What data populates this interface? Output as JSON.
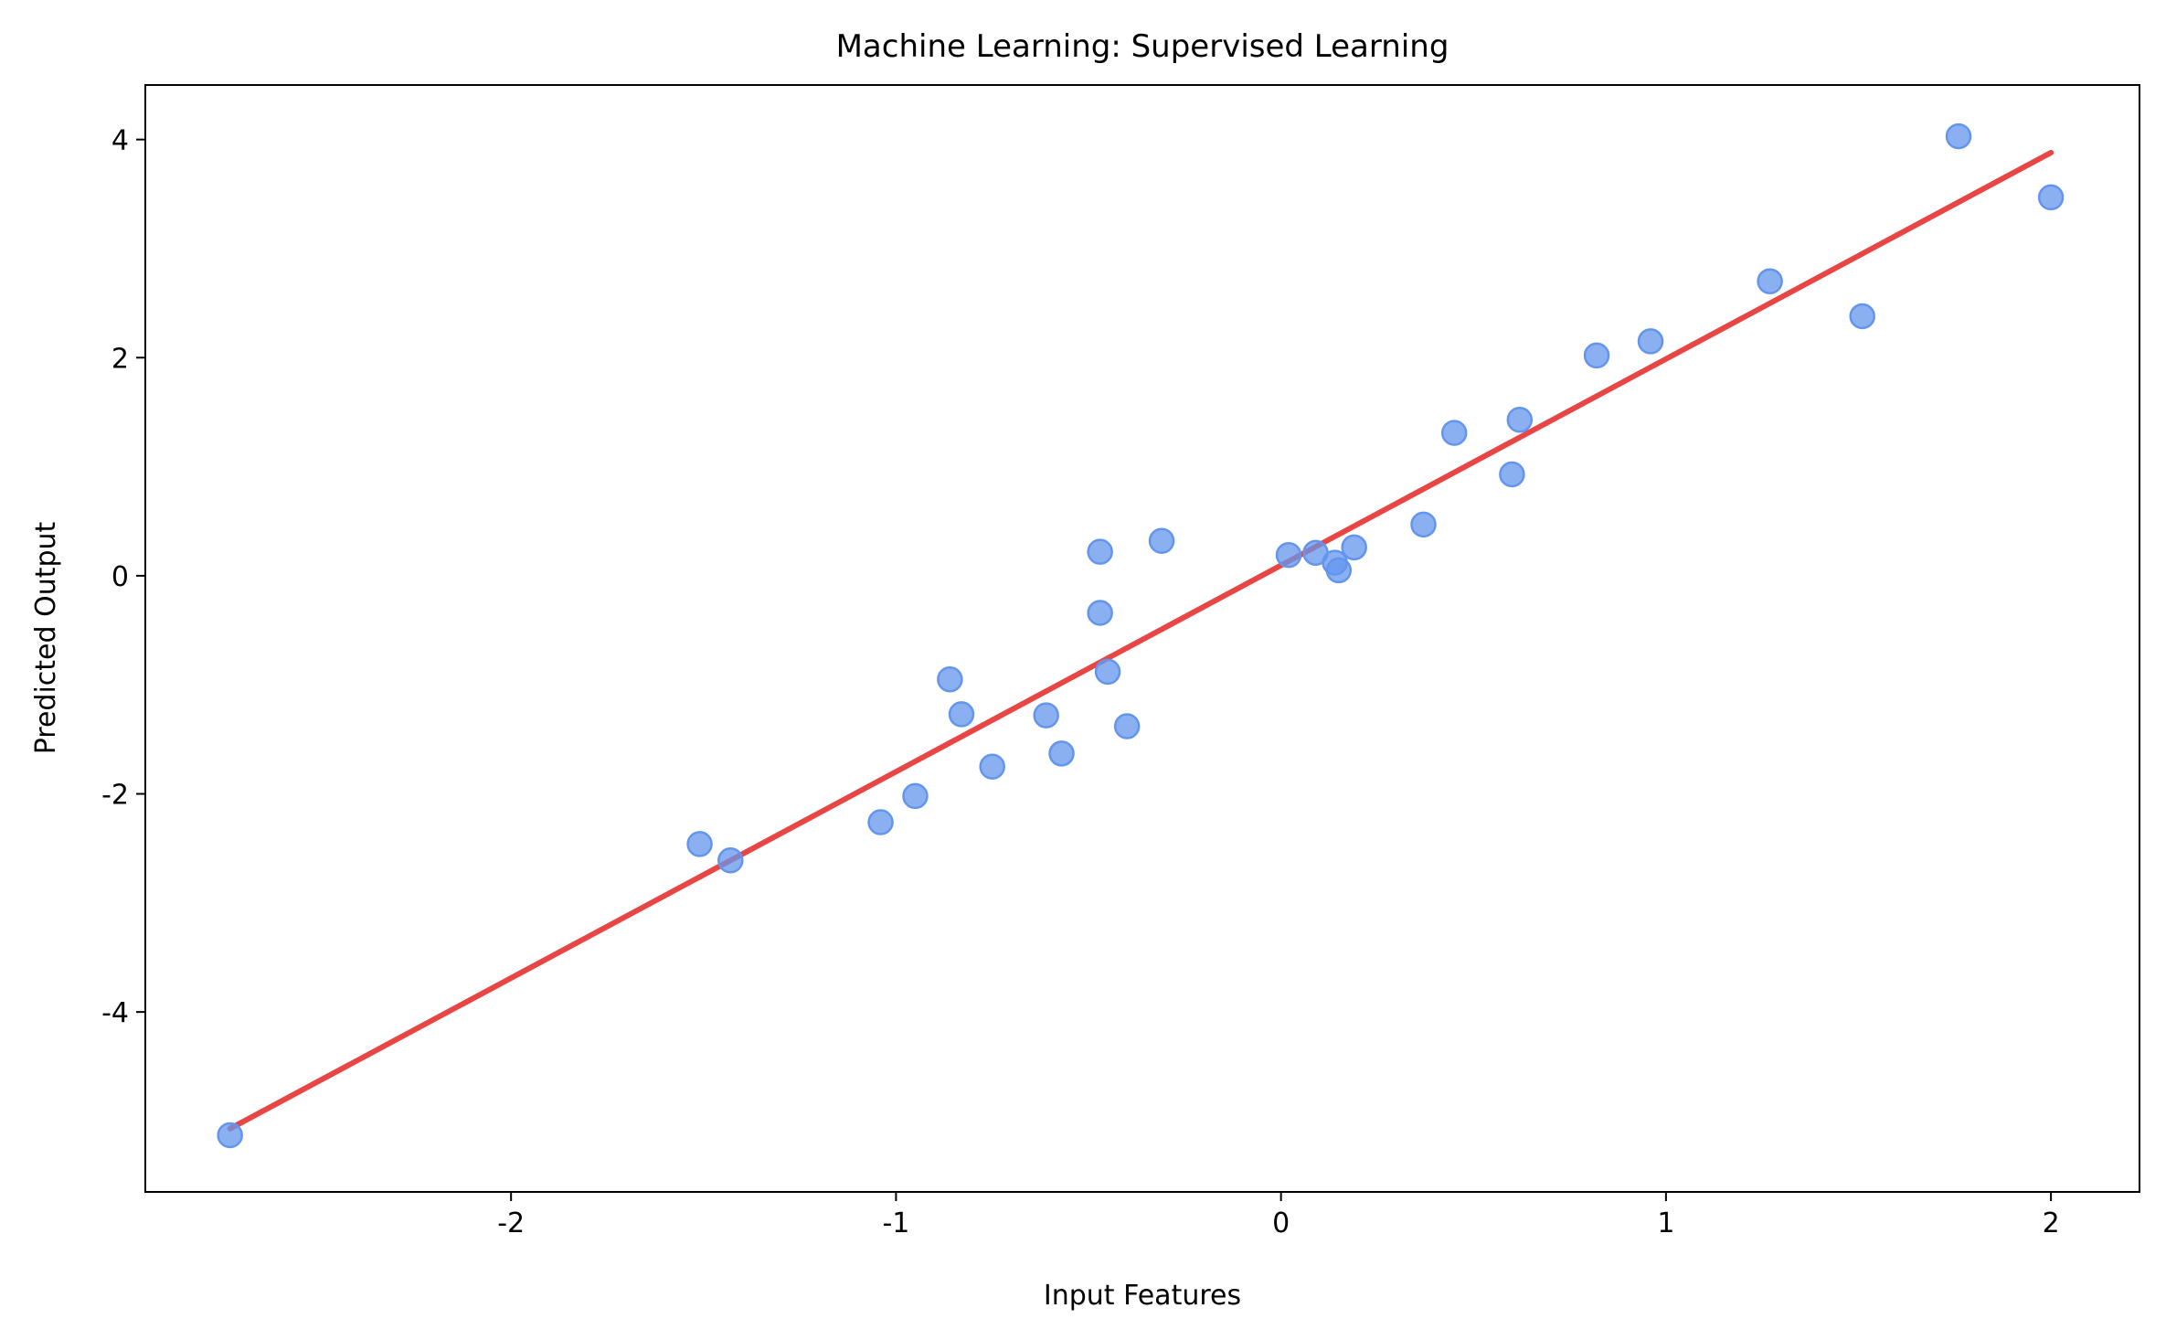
{
  "chart_data": {
    "type": "scatter",
    "title": "Machine Learning: Supervised Learning",
    "xlabel": "Input Features",
    "ylabel": "Predicted Output",
    "xlim": [
      -2.95,
      2.23
    ],
    "ylim": [
      -5.65,
      4.5
    ],
    "xticks": [
      -2,
      -1,
      0,
      1,
      2
    ],
    "xtick_labels": [
      "-2",
      "-1",
      "0",
      "1",
      "2"
    ],
    "yticks": [
      -4,
      -2,
      0,
      2,
      4
    ],
    "ytick_labels": [
      "-4",
      "-2",
      "0",
      "2",
      "4"
    ],
    "grid": false,
    "colors": {
      "points": "#6495ed",
      "line": "#e84545"
    },
    "points": {
      "x": [
        -2.73,
        -1.51,
        -1.43,
        -1.04,
        -0.95,
        -0.86,
        -0.83,
        -0.75,
        -0.61,
        -0.57,
        -0.47,
        -0.47,
        -0.45,
        -0.4,
        -0.31,
        0.02,
        0.09,
        0.14,
        0.15,
        0.19,
        0.37,
        0.45,
        0.6,
        0.62,
        0.82,
        0.96,
        1.27,
        1.51,
        1.76,
        2.0
      ],
      "y": [
        -5.13,
        -2.46,
        -2.61,
        -2.26,
        -2.02,
        -0.95,
        -1.27,
        -1.75,
        -1.28,
        -1.63,
        0.22,
        -0.34,
        -0.88,
        -1.38,
        0.32,
        0.19,
        0.21,
        0.12,
        0.05,
        0.26,
        0.47,
        1.31,
        0.93,
        1.43,
        2.02,
        2.15,
        2.7,
        2.38,
        4.03,
        3.47
      ]
    },
    "fit_line": {
      "x": [
        -2.73,
        2.0
      ],
      "y": [
        -5.07,
        3.88
      ]
    }
  }
}
